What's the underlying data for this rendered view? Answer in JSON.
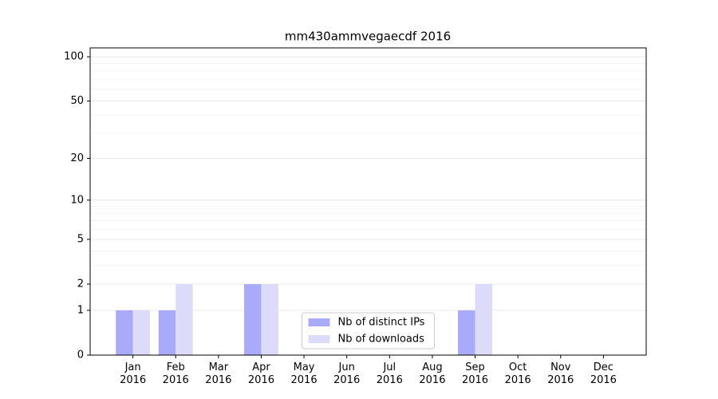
{
  "chart_data": {
    "type": "bar",
    "title": "mm430ammvegaecdf 2016",
    "categories": [
      "Jan\n2016",
      "Feb\n2016",
      "Mar\n2016",
      "Apr\n2016",
      "May\n2016",
      "Jun\n2016",
      "Jul\n2016",
      "Aug\n2016",
      "Sep\n2016",
      "Oct\n2016",
      "Nov\n2016",
      "Dec\n2016"
    ],
    "series": [
      {
        "name": "Nb of distinct IPs",
        "color": "#aaaafa",
        "values": [
          1,
          1,
          0,
          2,
          0,
          0,
          0,
          0,
          1,
          0,
          0,
          0
        ]
      },
      {
        "name": "Nb of downloads",
        "color": "#dcdcfa",
        "values": [
          1,
          2,
          0,
          2,
          0,
          0,
          0,
          0,
          2,
          0,
          0,
          0
        ]
      }
    ],
    "yscale": "log1p",
    "ylim": [
      0,
      115
    ],
    "yticks": [
      0,
      1,
      2,
      5,
      10,
      20,
      50,
      100
    ],
    "yminorticks": [
      3,
      4,
      6,
      7,
      8,
      9,
      30,
      40,
      60,
      70,
      80,
      90
    ],
    "grid": true,
    "legend": "lower center"
  }
}
